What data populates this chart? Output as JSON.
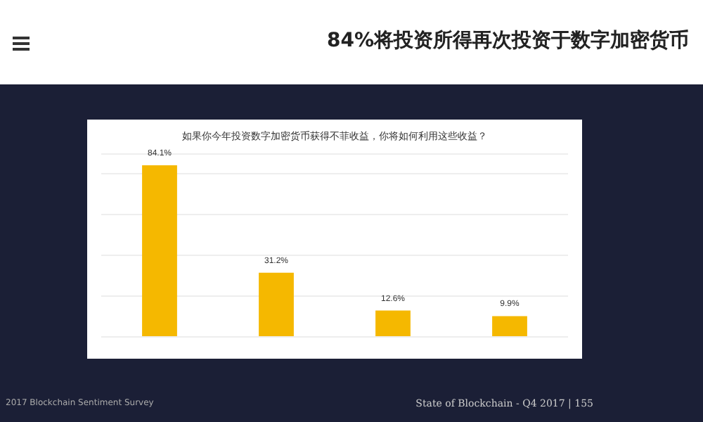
{
  "chart_data": {
    "type": "bar",
    "title": "84%将投资所得再次投资于数字加密货币",
    "subtitle": "如果你今年投资数字加密货币获得不菲收益，你将如何利用这些收益？",
    "categories": [
      null,
      null,
      null,
      null
    ],
    "values": [
      84.1,
      31.2,
      12.6,
      9.9
    ],
    "color": "#f5b800",
    "value_labels": [
      "84.1%",
      "31.2%",
      "12.6%",
      "9.9%"
    ],
    "ylim": [
      0,
      90
    ],
    "grid": "y",
    "tick_labels": false,
    "annotations": [
      "2017 Blockchain Sentiment Survey",
      "State of Blockchain - Q4 2017  |  155"
    ]
  }
}
